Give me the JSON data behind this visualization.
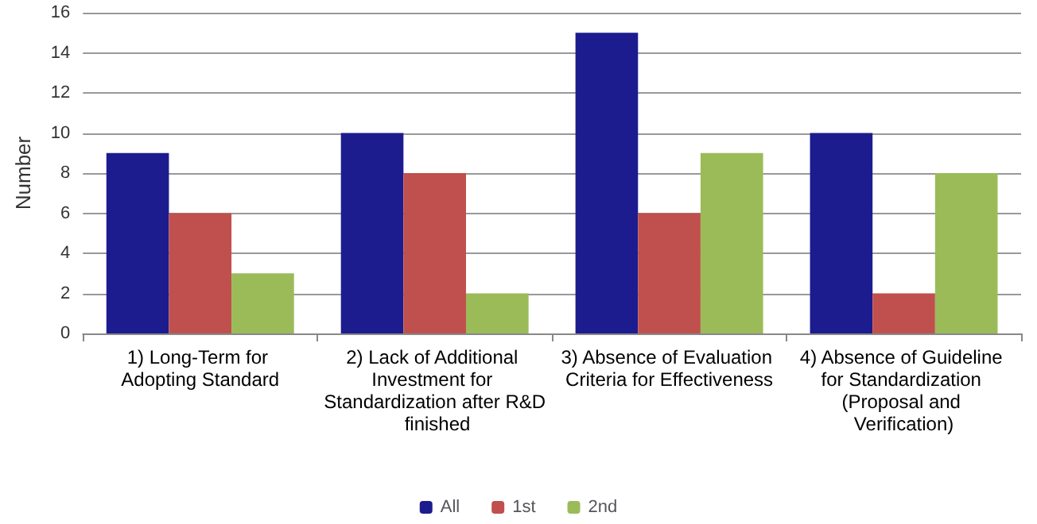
{
  "chart_data": {
    "type": "bar",
    "ylabel": "Number",
    "categories": [
      "1) Long-Term for Adopting Standard",
      "2) Lack of Additional Investment for Standardization after R&D finished",
      "3) Absence of Evaluation Criteria for Effectiveness",
      "4) Absence of Guideline for Standardization (Proposal and Verification)"
    ],
    "series": [
      {
        "name": "All",
        "color": "#1c1c8f",
        "values": [
          9,
          10,
          15,
          10
        ]
      },
      {
        "name": "1st",
        "color": "#c0504d",
        "values": [
          6,
          8,
          6,
          2
        ]
      },
      {
        "name": "2nd",
        "color": "#9bbb59",
        "values": [
          3,
          2,
          9,
          8
        ]
      }
    ],
    "ylim": [
      0,
      16
    ],
    "yticks": [
      0,
      2,
      4,
      6,
      8,
      10,
      12,
      14,
      16
    ],
    "grid": "y",
    "legend": "bottom"
  }
}
